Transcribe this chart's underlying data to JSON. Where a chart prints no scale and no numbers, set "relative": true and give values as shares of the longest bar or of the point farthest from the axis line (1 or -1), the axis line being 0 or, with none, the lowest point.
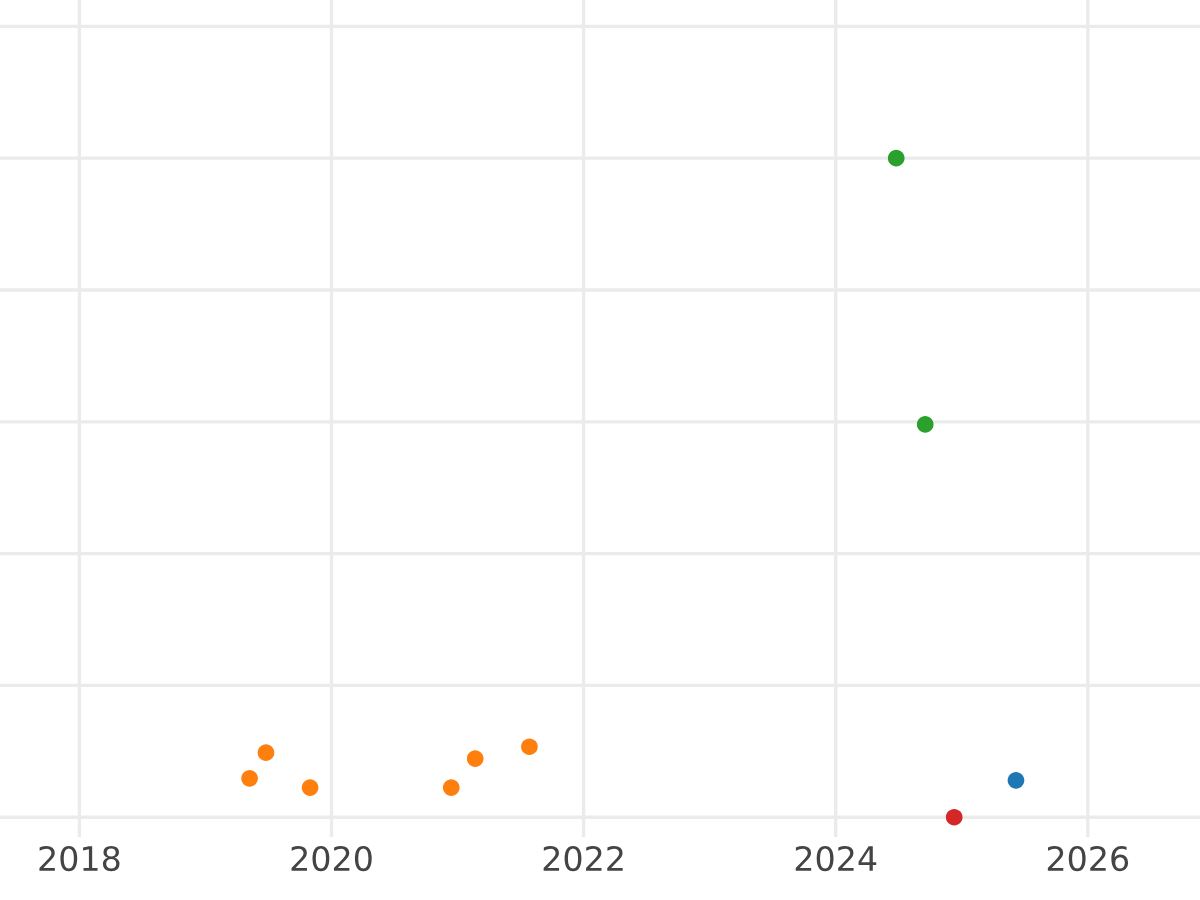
{
  "chart_data": {
    "type": "scatter",
    "relative": true,
    "grid": true,
    "marker": "circle",
    "xlim": [
      2017.37,
      2026.89
    ],
    "xticks": [
      2018,
      2020,
      2022,
      2024,
      2026
    ],
    "series": [
      {
        "color": "#ff7f0e",
        "x": [
          2019.35,
          2019.48,
          2019.83,
          2020.95,
          2021.14,
          2021.57
        ],
        "values": [
          0.059,
          0.098,
          0.045,
          0.045,
          0.089,
          0.107
        ]
      },
      {
        "color": "#2ca02c",
        "x": [
          2024.48,
          2024.71
        ],
        "values": [
          1,
          0.596
        ]
      },
      {
        "color": "#d62728",
        "x": [
          2024.94
        ],
        "values": [
          0
        ]
      },
      {
        "color": "#1f77b4",
        "x": [
          2025.43
        ],
        "values": [
          0.056
        ]
      }
    ]
  }
}
